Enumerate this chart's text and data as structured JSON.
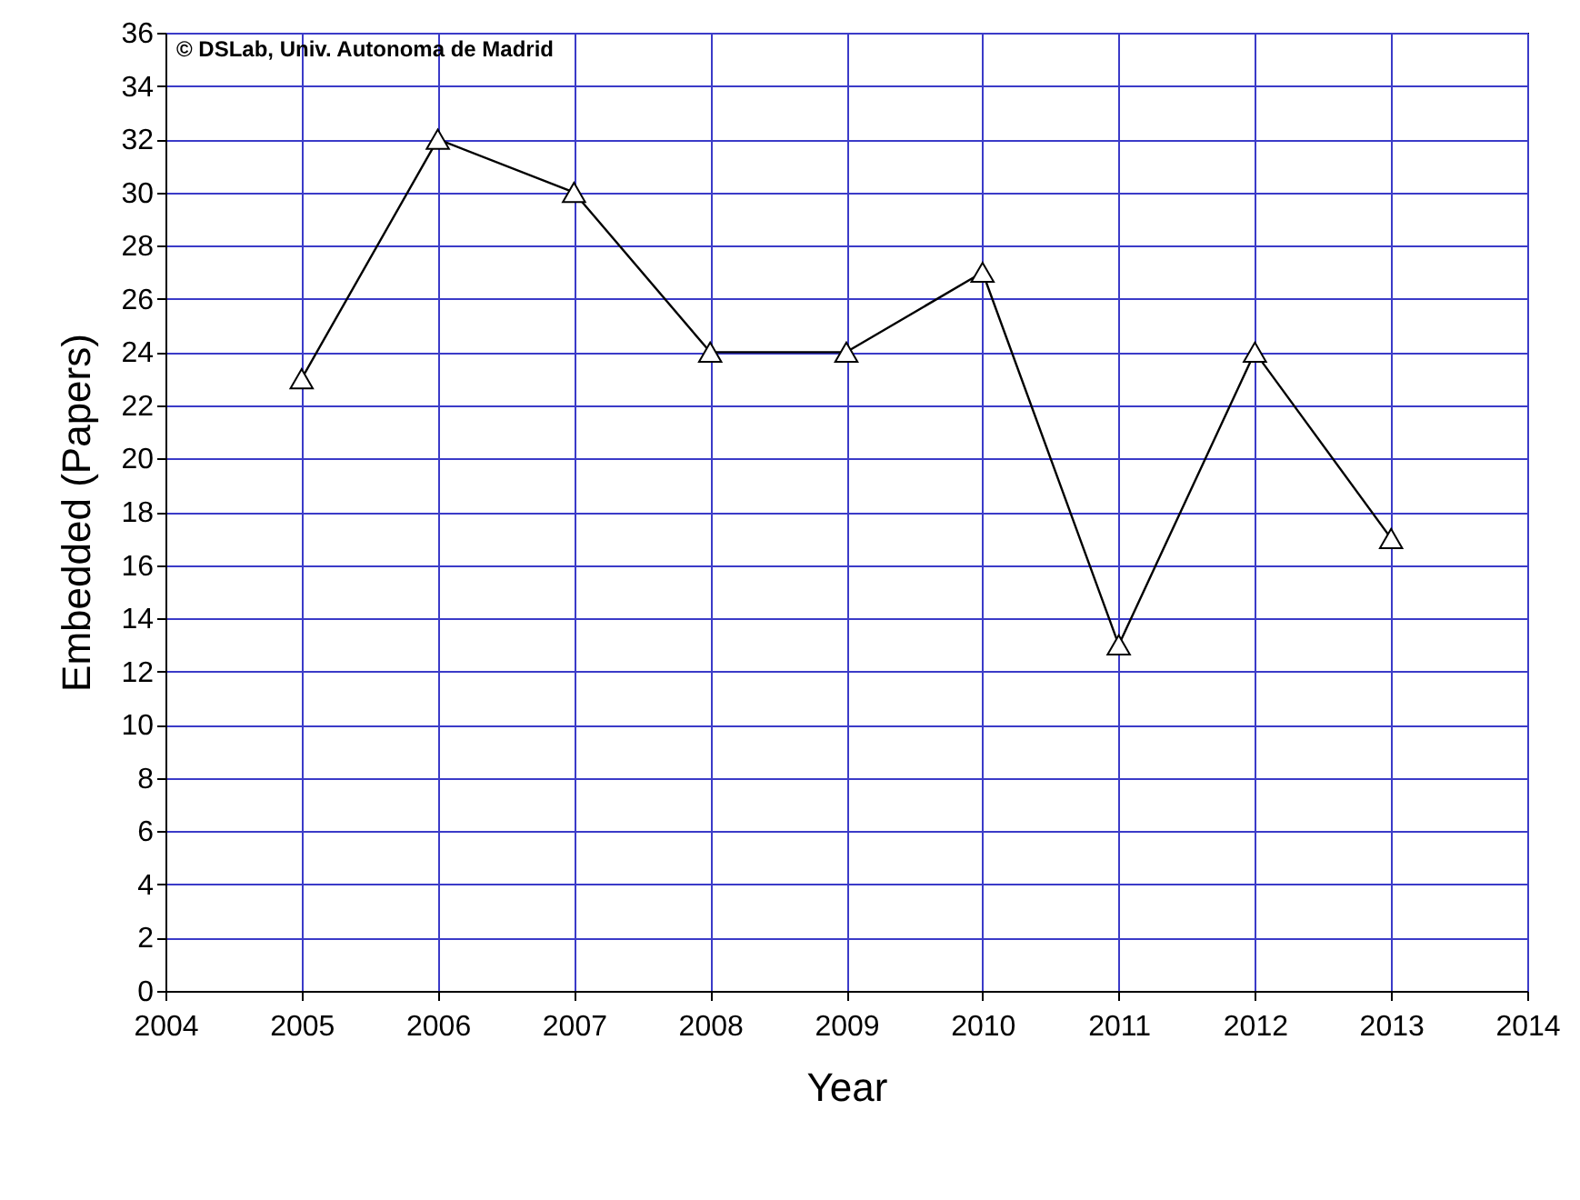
{
  "chart_data": {
    "type": "line",
    "xlabel": "Year",
    "ylabel": "Embedded (Papers)",
    "annotations": [
      "© DSLab, Univ. Autonoma de Madrid"
    ],
    "x": [
      2005,
      2006,
      2007,
      2008,
      2009,
      2010,
      2011,
      2012,
      2013
    ],
    "series": [
      {
        "color": "#000000",
        "values": [
          23,
          32,
          30,
          24,
          24,
          27,
          13,
          24,
          17
        ]
      }
    ],
    "xlim": [
      2004,
      2014
    ],
    "xticks": [
      2004,
      2005,
      2006,
      2007,
      2008,
      2009,
      2010,
      2011,
      2012,
      2013,
      2014
    ],
    "ylim": [
      0,
      36
    ],
    "yticks": [
      0,
      2,
      4,
      6,
      8,
      10,
      12,
      14,
      16,
      18,
      20,
      22,
      24,
      26,
      28,
      30,
      32,
      34,
      36
    ],
    "grid": true,
    "marker": "triangle",
    "line_style": "solid"
  }
}
